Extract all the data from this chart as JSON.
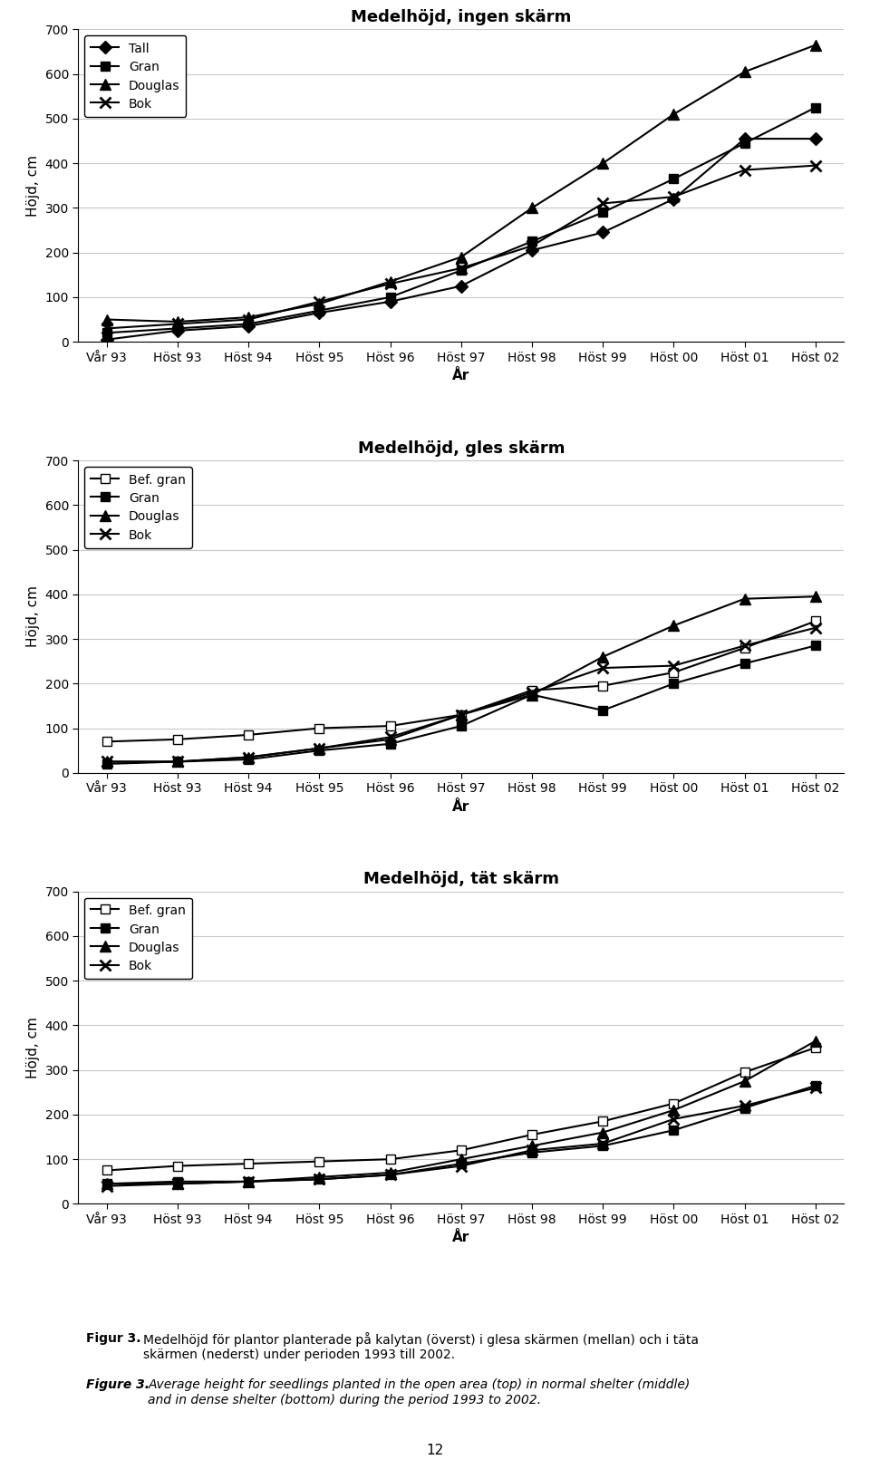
{
  "x_labels": [
    "Vår 93",
    "Höst 93",
    "Höst 94",
    "Höst 95",
    "Höst 96",
    "Höst 97",
    "Höst 98",
    "Höst 99",
    "Höst 00",
    "Höst 01",
    "Höst 02"
  ],
  "xlabel": "År",
  "ylabel": "Höjd, cm",
  "ylim": [
    0,
    700
  ],
  "yticks": [
    0,
    100,
    200,
    300,
    400,
    500,
    600,
    700
  ],
  "chart1": {
    "title": "Medelhöjd, ingen skärm",
    "series_order": [
      "Tall",
      "Gran",
      "Douglas",
      "Bok"
    ],
    "series": {
      "Tall": [
        5,
        25,
        35,
        65,
        90,
        125,
        205,
        245,
        320,
        455,
        455
      ],
      "Gran": [
        20,
        30,
        40,
        70,
        100,
        160,
        225,
        290,
        365,
        445,
        525
      ],
      "Douglas": [
        50,
        45,
        55,
        85,
        135,
        190,
        300,
        400,
        510,
        605,
        665
      ],
      "Bok": [
        30,
        40,
        50,
        90,
        130,
        165,
        215,
        310,
        325,
        385,
        395
      ]
    }
  },
  "chart2": {
    "title": "Medelhöjd, gles skärm",
    "series_order": [
      "Bef. gran",
      "Gran",
      "Douglas",
      "Bok"
    ],
    "series": {
      "Bef. gran": [
        70,
        75,
        85,
        100,
        105,
        130,
        185,
        195,
        225,
        280,
        340
      ],
      "Gran": [
        20,
        25,
        30,
        50,
        65,
        105,
        175,
        140,
        200,
        245,
        285
      ],
      "Douglas": [
        25,
        25,
        35,
        55,
        75,
        130,
        175,
        260,
        330,
        390,
        395
      ],
      "Bok": [
        25,
        25,
        35,
        55,
        80,
        130,
        180,
        235,
        240,
        285,
        325
      ]
    }
  },
  "chart3": {
    "title": "Medelhöjd, tät skärm",
    "series_order": [
      "Bef. gran",
      "Gran",
      "Douglas",
      "Bok"
    ],
    "series": {
      "Bef. gran": [
        75,
        85,
        90,
        95,
        100,
        120,
        155,
        185,
        225,
        295,
        350
      ],
      "Gran": [
        45,
        50,
        50,
        55,
        65,
        90,
        115,
        130,
        165,
        215,
        265
      ],
      "Douglas": [
        45,
        45,
        50,
        60,
        70,
        100,
        130,
        160,
        210,
        275,
        365
      ],
      "Bok": [
        40,
        45,
        50,
        55,
        65,
        85,
        120,
        135,
        190,
        220,
        260
      ]
    }
  },
  "background_color": "#ffffff",
  "grid_color": "#c8c8c8",
  "font_size_title": 13,
  "font_size_axis_label": 11,
  "font_size_tick": 10,
  "font_size_legend": 10,
  "font_size_caption": 10,
  "font_size_page": 11,
  "page_number": "12"
}
